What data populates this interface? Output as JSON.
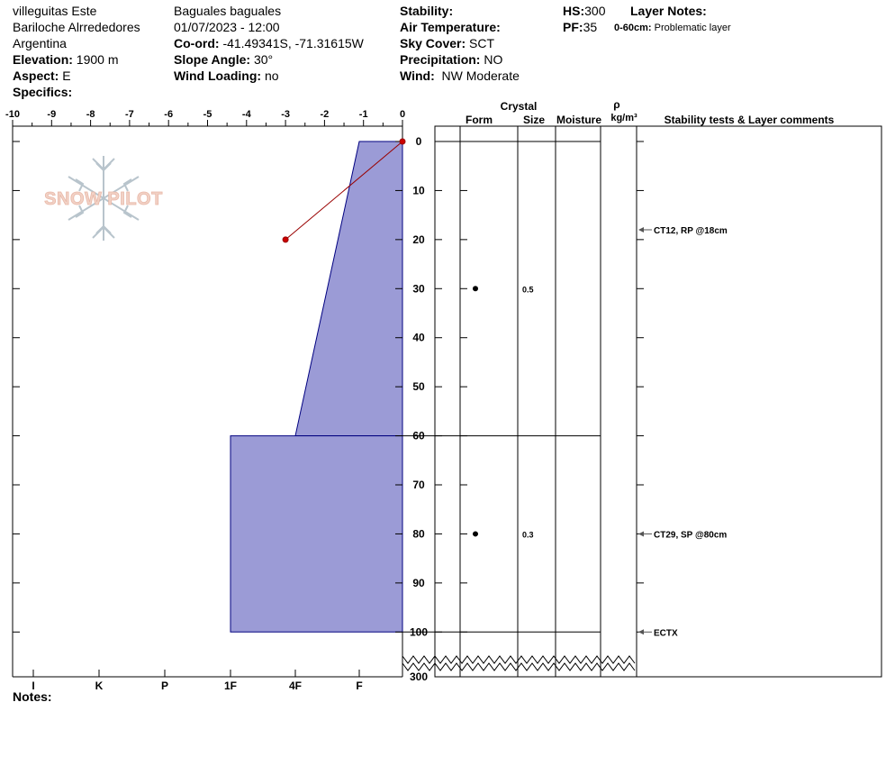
{
  "header": {
    "location": "villeguitas Este",
    "region": "Bariloche Alrrededores",
    "country": "Argentina",
    "elevation_label": "Elevation:",
    "elevation": "1900 m",
    "aspect_label": "Aspect:",
    "aspect": "E",
    "specifics_label": "Specifics:",
    "observer": "Baguales baguales",
    "datetime": "01/07/2023 - 12:00",
    "coord_label": "Co-ord:",
    "coord": "-41.49341S, -71.31615W",
    "slope_label": "Slope Angle:",
    "slope": "30°",
    "wind_loading_label": "Wind Loading:",
    "wind_loading": "no",
    "stability_label": "Stability:",
    "air_temp_label": "Air Temperature:",
    "sky_label": "Sky Cover:",
    "sky": "SCT",
    "precip_label": "Precipitation:",
    "precip": "NO",
    "wind_label": "Wind:",
    "wind": "NW Moderate",
    "hs_label": "HS:",
    "hs": "300",
    "pf_label": "PF:",
    "pf": "35",
    "layer_notes_label": "Layer Notes:",
    "layer_note_range": "0-60cm:",
    "layer_note_text": "Problematic layer"
  },
  "logo_text": "SNOW PILOT",
  "notes_label": "Notes:",
  "colors": {
    "hardness_fill": "#9b9bd6",
    "hardness_stroke": "#000080",
    "temp_line": "#990000",
    "logo_fill": "#f2d2c6",
    "logo_snowflake": "#b8c4cc"
  },
  "chart_data": {
    "type": "area",
    "temperature_axis": {
      "ticks": [
        "-10",
        "-9",
        "-8",
        "-7",
        "-6",
        "-5",
        "-4",
        "-3",
        "-2",
        "-1",
        "0"
      ],
      "range": [
        -10,
        0
      ]
    },
    "depth_axis": {
      "ticks": [
        "0",
        "10",
        "20",
        "30",
        "40",
        "50",
        "60",
        "70",
        "80",
        "90",
        "100"
      ],
      "range": [
        0,
        100
      ],
      "break_label": "300"
    },
    "hardness_axis": {
      "ticks": [
        "I",
        "K",
        "P",
        "1F",
        "4F",
        "F"
      ]
    },
    "hardness_profile": [
      {
        "top": 0,
        "bottom": 60,
        "hardness_top": "F",
        "hardness_bottom": "4F"
      },
      {
        "top": 60,
        "bottom": 100,
        "hardness": "1F+"
      }
    ],
    "temperature_profile": [
      {
        "depth": 0,
        "temp": 0
      },
      {
        "depth": 20,
        "temp": -3
      }
    ],
    "columns": {
      "crystal": "Crystal",
      "form": "Form",
      "size": "Size",
      "moisture": "Moisture",
      "rho": "ρ",
      "density_unit": "kg/m³",
      "comments": "Stability tests & Layer comments"
    },
    "layer_boundaries": [
      0,
      60,
      100
    ],
    "crystals": [
      {
        "depth": 30,
        "form": "round-grains-dot",
        "size": "0.5"
      },
      {
        "depth": 80,
        "form": "round-grains-dot",
        "size": "0.3"
      }
    ],
    "stability_tests": [
      {
        "depth": 18,
        "label": "CT12, RP @18cm"
      },
      {
        "depth": 80,
        "label": "CT29, SP @80cm"
      },
      {
        "depth": 100,
        "label": "ECTX"
      }
    ]
  }
}
